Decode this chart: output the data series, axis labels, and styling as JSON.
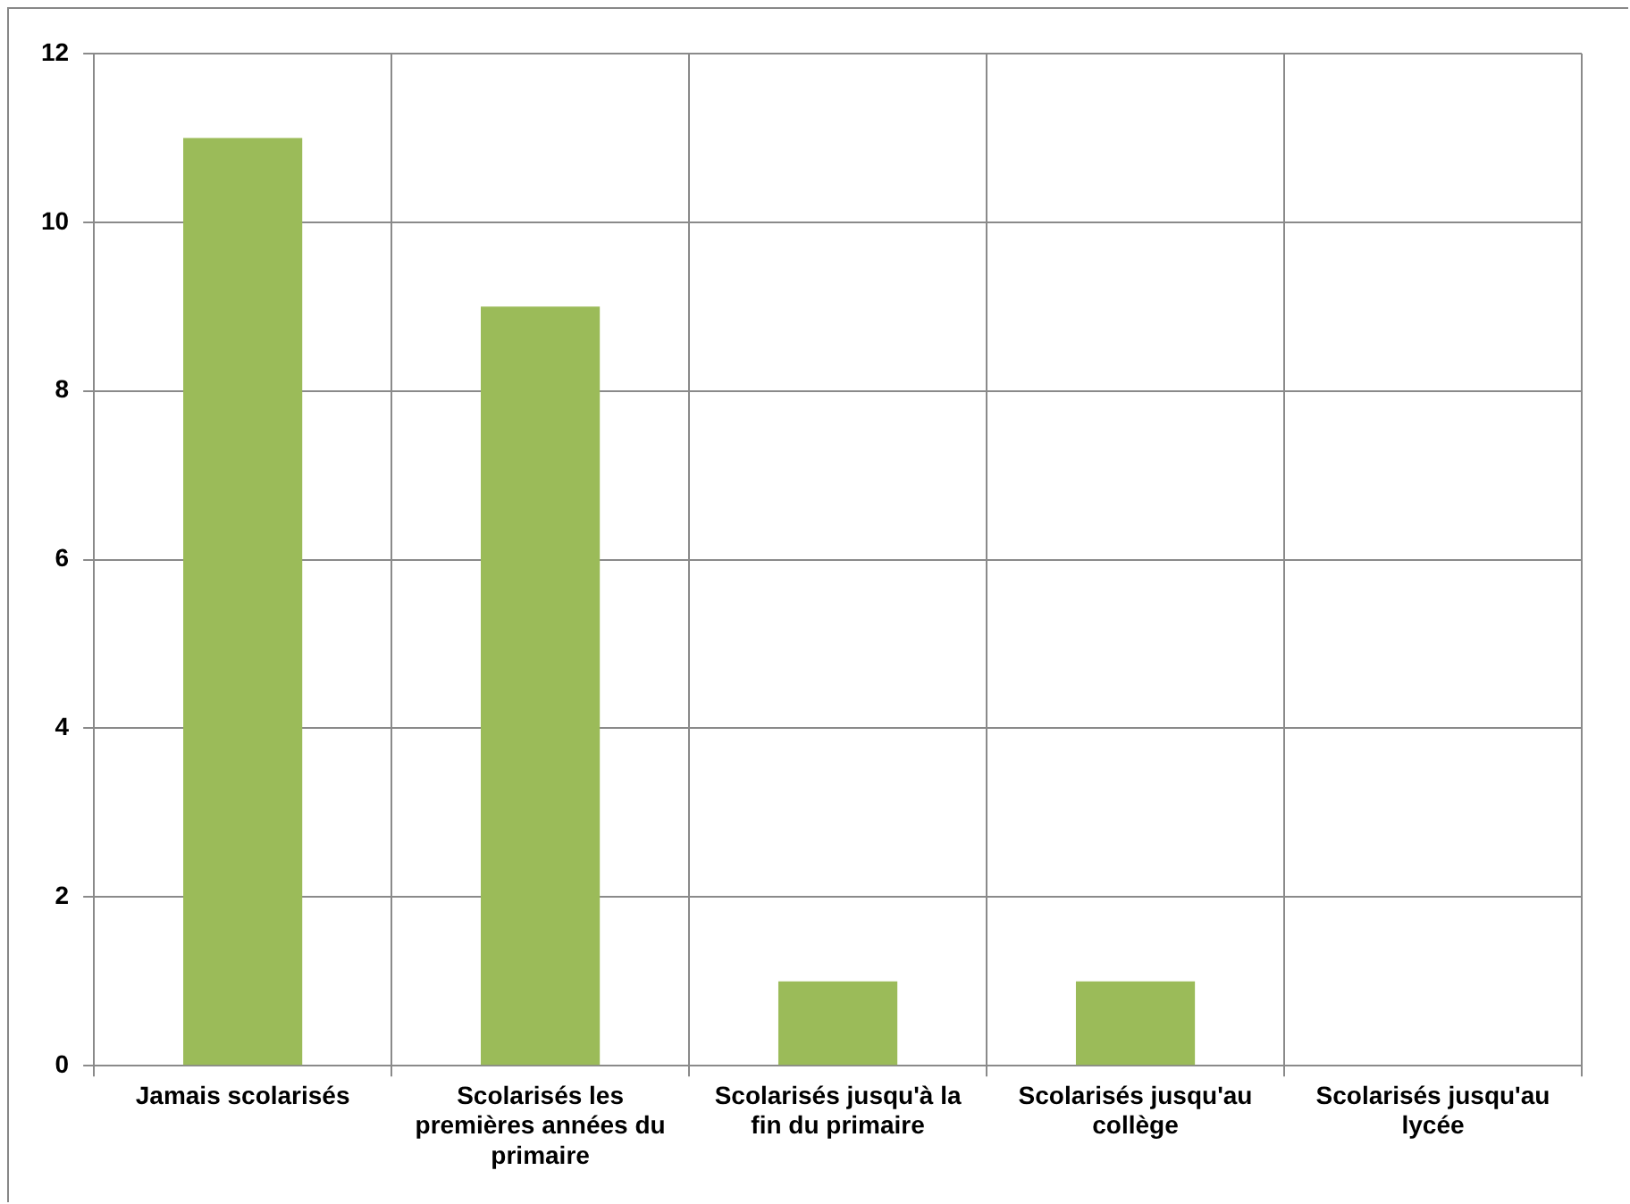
{
  "chart_data": {
    "type": "bar",
    "categories": [
      "Jamais scolarisés",
      "Scolarisés les premières années du primaire",
      "Scolarisés jusqu'à la fin du primaire",
      "Scolarisés jusqu'au collège",
      "Scolarisés jusqu'au lycée"
    ],
    "values": [
      11,
      9,
      1,
      1,
      0
    ],
    "color": "#9bbb59",
    "ylim": [
      0,
      12
    ],
    "yticks": [
      0,
      2,
      4,
      6,
      8,
      10,
      12
    ],
    "grid": true,
    "legend": false
  }
}
